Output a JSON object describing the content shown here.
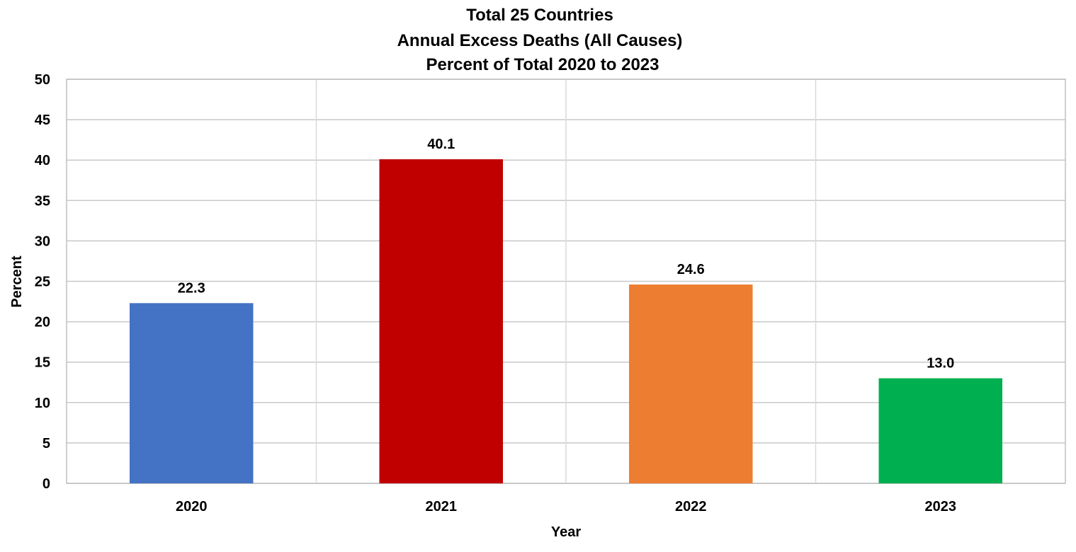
{
  "chart_data": {
    "type": "bar",
    "title_lines": [
      "Total 25 Countries",
      "Annual Excess Deaths (All Causes)",
      "Percent of Total 2020 to 2023"
    ],
    "categories": [
      "2020",
      "2021",
      "2022",
      "2023"
    ],
    "values": [
      22.3,
      40.1,
      24.6,
      13.0
    ],
    "data_labels": [
      "22.3",
      "40.1",
      "24.6",
      "13.0"
    ],
    "bar_colors": [
      "#4472C4",
      "#C00000",
      "#ED7D31",
      "#00B050"
    ],
    "xlabel": "Year",
    "ylabel": "Percent",
    "ylim": [
      0,
      50
    ],
    "yticks": [
      "0",
      "5",
      "10",
      "15",
      "20",
      "25",
      "30",
      "35",
      "40",
      "45",
      "50"
    ],
    "grid": true,
    "vertical_separators": true,
    "legend": "none"
  }
}
